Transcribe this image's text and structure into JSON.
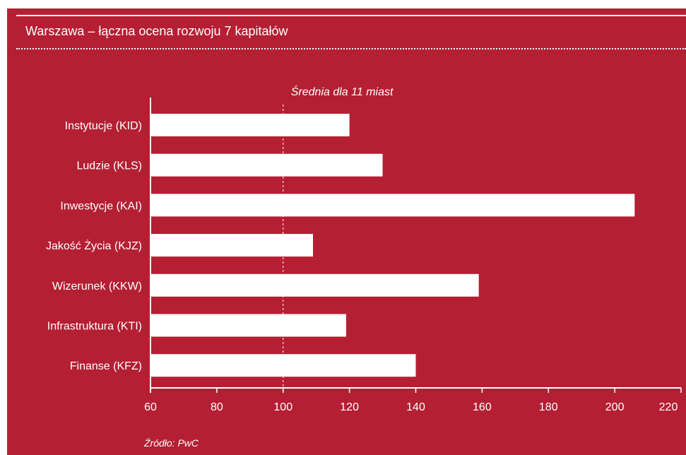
{
  "title": "Warszawa – łączna ocena rozwoju 7 kapitałów",
  "source": "Źródło: PwC",
  "colors": {
    "background": "#b51f33",
    "bar": "#ffffff",
    "text": "#ffffff"
  },
  "chart_data": {
    "type": "bar",
    "orientation": "horizontal",
    "categories": [
      "Instytucje (KID)",
      "Ludzie (KLS)",
      "Inwestycje (KAI)",
      "Jakość Życia (KJZ)",
      "Wizerunek (KKW)",
      "Infrastruktura (KTI)",
      "Finanse (KFZ)"
    ],
    "values": [
      120,
      130,
      206,
      109,
      159,
      119,
      140
    ],
    "xlim": [
      60,
      220
    ],
    "xticks": [
      60,
      80,
      100,
      120,
      140,
      160,
      180,
      200,
      220
    ],
    "reference_line": {
      "value": 100,
      "label": "Średnia dla 11 miast",
      "style": "dashed"
    },
    "grid": false,
    "legend": "none"
  }
}
